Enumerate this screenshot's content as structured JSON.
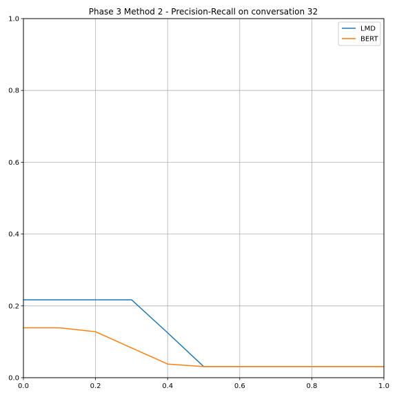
{
  "chart_data": {
    "type": "line",
    "title": "Phase 3 Method 2 - Precision-Recall on conversation 32",
    "xlabel": "",
    "ylabel": "",
    "xlim": [
      0,
      1
    ],
    "ylim": [
      0,
      1
    ],
    "xticks": [
      "0.0",
      "0.2",
      "0.4",
      "0.6",
      "0.8",
      "1.0"
    ],
    "yticks": [
      "0.0",
      "0.2",
      "0.4",
      "0.6",
      "0.8",
      "1.0"
    ],
    "grid": true,
    "legend_position": "top-right",
    "series": [
      {
        "name": "LMD",
        "color": "#1f77b4",
        "x": [
          0.0,
          0.1,
          0.2,
          0.3,
          0.4,
          0.5,
          0.6,
          0.7,
          0.8,
          0.9,
          1.0
        ],
        "y": [
          0.217,
          0.217,
          0.217,
          0.217,
          0.125,
          0.031,
          0.031,
          0.031,
          0.031,
          0.031,
          0.031
        ]
      },
      {
        "name": "BERT",
        "color": "#ff7f0e",
        "x": [
          0.0,
          0.1,
          0.2,
          0.3,
          0.4,
          0.5,
          0.6,
          0.7,
          0.8,
          0.9,
          1.0
        ],
        "y": [
          0.139,
          0.139,
          0.128,
          0.083,
          0.038,
          0.031,
          0.031,
          0.031,
          0.031,
          0.031,
          0.031
        ]
      }
    ]
  }
}
